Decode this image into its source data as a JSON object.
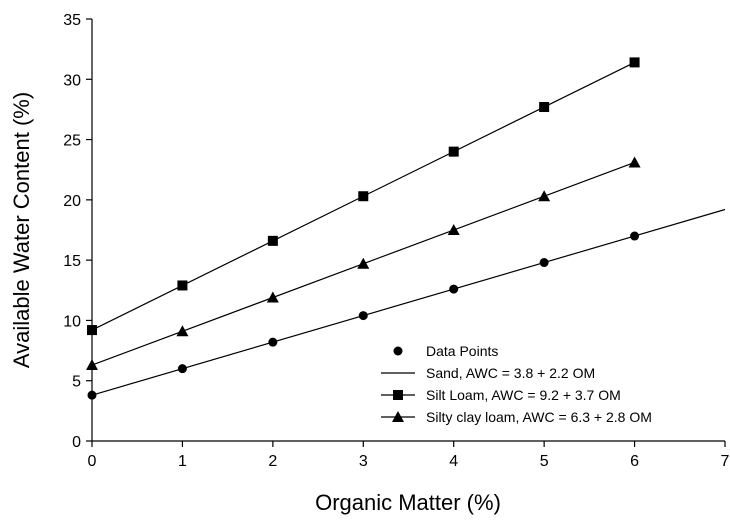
{
  "chart_data": {
    "type": "scatter",
    "title": "",
    "xlabel": "Organic Matter (%)",
    "ylabel": "Available Water Content (%)",
    "xlim": [
      0,
      7
    ],
    "ylim": [
      0,
      35
    ],
    "xticks": [
      "0",
      "1",
      "2",
      "3",
      "4",
      "5",
      "6",
      "7"
    ],
    "yticks": [
      "0",
      "5",
      "10",
      "15",
      "20",
      "25",
      "30",
      "35"
    ],
    "grid": false,
    "legend_position": "bottom-right",
    "legend": [
      {
        "label": "Data Points",
        "marker": "circle",
        "line": false
      },
      {
        "label": "Sand, AWC = 3.8 + 2.2 OM",
        "marker": "none",
        "line": true
      },
      {
        "label": "Silt Loam, AWC = 9.2 + 3.7 OM",
        "marker": "square",
        "line": true
      },
      {
        "label": "Silty clay loam, AWC = 6.3 + 2.8 OM",
        "marker": "triangle",
        "line": true
      }
    ],
    "series": [
      {
        "name": "Sand, AWC = 3.8 + 2.2 OM",
        "marker": "circle",
        "color": "#000000",
        "x": [
          0,
          1,
          2,
          3,
          4,
          5,
          6
        ],
        "y": [
          3.8,
          6.0,
          8.2,
          10.4,
          12.6,
          14.8,
          17.0
        ],
        "fit_line": {
          "x": [
            0,
            7
          ],
          "y": [
            3.8,
            19.2
          ]
        }
      },
      {
        "name": "Silt Loam, AWC = 9.2 + 3.7 OM",
        "marker": "square",
        "color": "#000000",
        "x": [
          0,
          1,
          2,
          3,
          4,
          5,
          6
        ],
        "y": [
          9.2,
          12.9,
          16.6,
          20.3,
          24.0,
          27.7,
          31.4
        ],
        "fit_line": {
          "x": [
            0,
            6
          ],
          "y": [
            9.2,
            31.4
          ]
        }
      },
      {
        "name": "Silty clay loam, AWC = 6.3 + 2.8 OM",
        "marker": "triangle",
        "color": "#000000",
        "x": [
          0,
          1,
          2,
          3,
          4,
          5,
          6
        ],
        "y": [
          6.3,
          9.1,
          11.9,
          14.7,
          17.5,
          20.3,
          23.1
        ],
        "fit_line": {
          "x": [
            0,
            6
          ],
          "y": [
            6.3,
            23.1
          ]
        }
      }
    ]
  }
}
